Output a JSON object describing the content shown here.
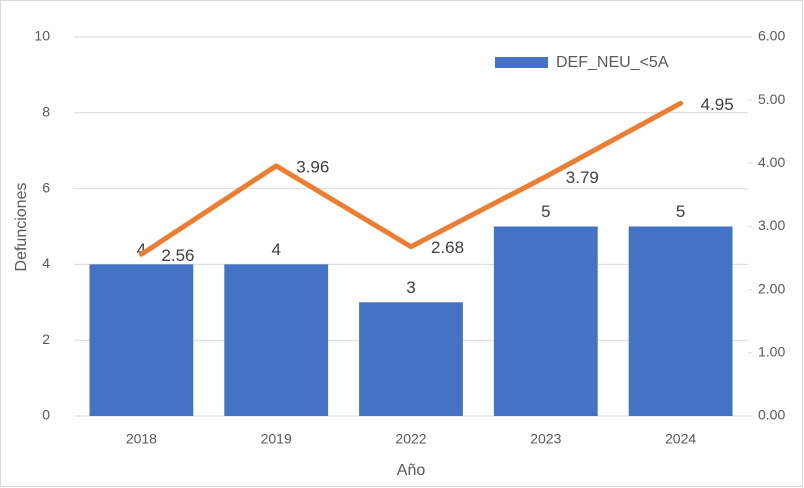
{
  "chart_data": {
    "type": "bar",
    "categories": [
      "2018",
      "2019",
      "2022",
      "2023",
      "2024"
    ],
    "series": [
      {
        "name": "DEF_NEU_<5A",
        "color": "#4472c4",
        "type": "bar",
        "values": [
          4,
          4,
          3,
          5,
          5
        ]
      },
      {
        "color": "#ed7d31",
        "type": "line",
        "axis": "y2",
        "values": [
          2.56,
          3.96,
          2.68,
          3.79,
          4.95
        ]
      }
    ],
    "x_label": "Año",
    "y_label": "Defunciones",
    "ylim": [
      0,
      10
    ],
    "yticks": [
      0,
      2,
      4,
      6,
      8,
      10
    ],
    "y2lim": [
      0,
      6
    ],
    "y2ticks": [
      {
        "value": 0,
        "label": "0.00"
      },
      {
        "value": 1,
        "label": "1.00"
      },
      {
        "value": 2,
        "label": "2.00"
      },
      {
        "value": 3,
        "label": "3.00"
      },
      {
        "value": 4,
        "label": "4.00"
      },
      {
        "value": 5,
        "label": "5.00"
      },
      {
        "value": 6,
        "label": "6.00"
      }
    ],
    "grid": true,
    "legend": "top-right"
  }
}
